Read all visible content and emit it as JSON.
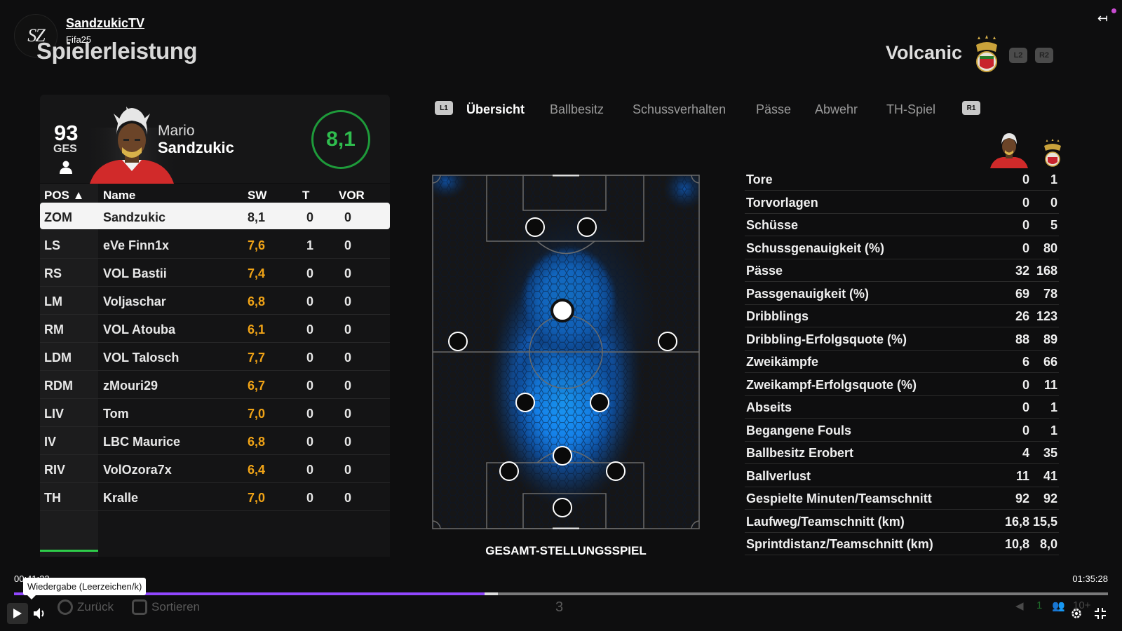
{
  "channel": {
    "name": "SandzukicTV",
    "subtitle": "Fifa25",
    "avatar_text": "SZ"
  },
  "page": {
    "title": "Spielerleistung"
  },
  "team": {
    "name": "Volcanic",
    "left_button": "L2",
    "right_button": "R2"
  },
  "player": {
    "overall": "93",
    "overall_label": "GES",
    "first_name": "Mario",
    "last_name": "Sandzukic",
    "rating": "8,1"
  },
  "table": {
    "headers": {
      "pos": "POS ▲",
      "name": "Name",
      "sw": "SW",
      "t": "T",
      "vor": "VOR"
    },
    "rows": [
      {
        "pos": "ZOM",
        "name": "Sandzukic",
        "sw": "8,1",
        "t": "0",
        "vor": "0"
      },
      {
        "pos": "LS",
        "name": "eVe Finn1x",
        "sw": "7,6",
        "t": "1",
        "vor": "0"
      },
      {
        "pos": "RS",
        "name": "VOL Bastii",
        "sw": "7,4",
        "t": "0",
        "vor": "0"
      },
      {
        "pos": "LM",
        "name": "Voljaschar",
        "sw": "6,8",
        "t": "0",
        "vor": "0"
      },
      {
        "pos": "RM",
        "name": "VOL Atouba",
        "sw": "6,1",
        "t": "0",
        "vor": "0"
      },
      {
        "pos": "LDM",
        "name": "VOL Talosch",
        "sw": "7,7",
        "t": "0",
        "vor": "0"
      },
      {
        "pos": "RDM",
        "name": "zMouri29",
        "sw": "6,7",
        "t": "0",
        "vor": "0"
      },
      {
        "pos": "LIV",
        "name": "Tom",
        "sw": "7,0",
        "t": "0",
        "vor": "0"
      },
      {
        "pos": "IV",
        "name": "LBC Maurice",
        "sw": "6,8",
        "t": "0",
        "vor": "0"
      },
      {
        "pos": "RIV",
        "name": "VolOzora7x",
        "sw": "6,4",
        "t": "0",
        "vor": "0"
      },
      {
        "pos": "TH",
        "name": "Kralle",
        "sw": "7,0",
        "t": "0",
        "vor": "0"
      }
    ]
  },
  "tabs": {
    "left_shoulder": "L1",
    "right_shoulder": "R1",
    "items": [
      {
        "label": "Übersicht",
        "active": true
      },
      {
        "label": "Ballbesitz",
        "active": false
      },
      {
        "label": "Schussverhalten",
        "active": false
      },
      {
        "label": "Pässe",
        "active": false
      },
      {
        "label": "Abwehr",
        "active": false
      },
      {
        "label": "TH-Spiel",
        "active": false
      }
    ]
  },
  "pitch": {
    "caption": "GESAMT-STELLUNGSSPIEL"
  },
  "stats": [
    {
      "label": "Tore",
      "player": "0",
      "team": "1"
    },
    {
      "label": "Torvorlagen",
      "player": "0",
      "team": "0"
    },
    {
      "label": "Schüsse",
      "player": "0",
      "team": "5"
    },
    {
      "label": "Schussgenauigkeit (%)",
      "player": "0",
      "team": "80"
    },
    {
      "label": "Pässe",
      "player": "32",
      "team": "168"
    },
    {
      "label": "Passgenauigkeit (%)",
      "player": "69",
      "team": "78"
    },
    {
      "label": "Dribblings",
      "player": "26",
      "team": "123"
    },
    {
      "label": "Dribbling-Erfolgsquote (%)",
      "player": "88",
      "team": "89"
    },
    {
      "label": "Zweikämpfe",
      "player": "6",
      "team": "66"
    },
    {
      "label": "Zweikampf-Erfolgsquote (%)",
      "player": "0",
      "team": "11"
    },
    {
      "label": "Abseits",
      "player": "0",
      "team": "1"
    },
    {
      "label": "Begangene Fouls",
      "player": "0",
      "team": "1"
    },
    {
      "label": "Ballbesitz Erobert",
      "player": "4",
      "team": "35"
    },
    {
      "label": "Ballverlust",
      "player": "11",
      "team": "41"
    },
    {
      "label": "Gespielte Minuten/Teamschnitt",
      "player": "92",
      "team": "92"
    },
    {
      "label": "Laufweg/Teamschnitt (km)",
      "player": "16,8",
      "team": "15,5"
    },
    {
      "label": "Sprintdistanz/Teamschnitt (km)",
      "player": "10,8",
      "team": "8,0"
    }
  ],
  "video": {
    "current_time": "00:41:23",
    "total_time": "01:35:28",
    "tooltip": "Wiedergabe (Leerzeichen/k)",
    "progress": 0.43,
    "buffer": 0.442
  },
  "footer": {
    "back_label": "Zurück",
    "sort_label": "Sortieren",
    "page_number": "3",
    "right_count": "1",
    "viewers": "10+"
  },
  "colors": {
    "accent_green": "#2ecc4a",
    "rating_orange": "#f0a316",
    "progress_purple": "#9147ff",
    "heat_blue": "#1b8fff"
  }
}
